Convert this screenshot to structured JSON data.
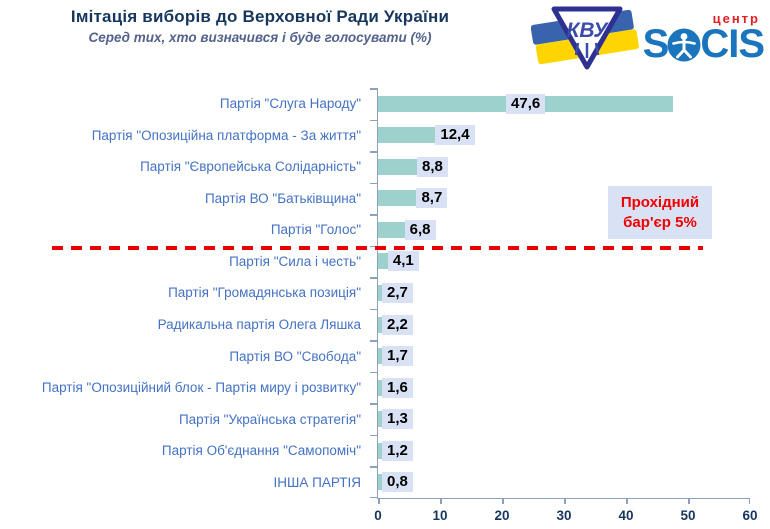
{
  "header": {
    "title": "Імітація виборів до Верховної Ради України",
    "subtitle": "Серед тих, хто визначився і буде голосувати (%)"
  },
  "logos": {
    "kvu_text": "КВУ",
    "socis_prefix": "S",
    "socis_suffix": "CIS",
    "center_label": "центр"
  },
  "annotation": {
    "line1": "Прохідний",
    "line2": "бар'єр 5%"
  },
  "chart_data": {
    "type": "bar",
    "orientation": "horizontal",
    "title": "Імітація виборів до Верховної Ради України",
    "subtitle": "Серед тих, хто визначився і буде голосувати (%)",
    "categories": [
      "Партія \"Слуга Народу\"",
      "Партія \"Опозиційна платформа - За життя\"",
      "Партія \"Європейська Солідарність\"",
      "Партія ВО \"Батьківщина\"",
      "Партія \"Голос\"",
      "Партія \"Сила і честь\"",
      "Партія \"Громадянська позиція\"",
      "Радикальна партія Олега Ляшка",
      "Партія ВО \"Свобода\"",
      "Партія \"Опозиційний блок - Партія миру і розвитку\"",
      "Партія \"Українська стратегія\"",
      "Партія Об'єднання \"Самопоміч\"",
      "ІНША ПАРТІЯ"
    ],
    "values": [
      47.6,
      12.4,
      8.8,
      8.7,
      6.8,
      4.1,
      2.7,
      2.2,
      1.7,
      1.6,
      1.3,
      1.2,
      0.8
    ],
    "value_labels": [
      "47,6",
      "12,4",
      "8,8",
      "8,7",
      "6,8",
      "4,1",
      "2,7",
      "2,2",
      "1,7",
      "1,6",
      "1,3",
      "1,2",
      "0,8"
    ],
    "threshold": {
      "value": 5,
      "label": "Прохідний бар'єр 5%"
    },
    "xlim": [
      0,
      60
    ],
    "x_ticks": [
      0,
      10,
      20,
      30,
      40,
      50,
      60
    ],
    "grid": false,
    "legend": false,
    "bar_color": "#9CD1CE",
    "value_label_bg": "#D9E1F5",
    "threshold_line_color": "#E80000",
    "category_label_color": "#4472C4",
    "axis_color": "#8EA0BC"
  }
}
